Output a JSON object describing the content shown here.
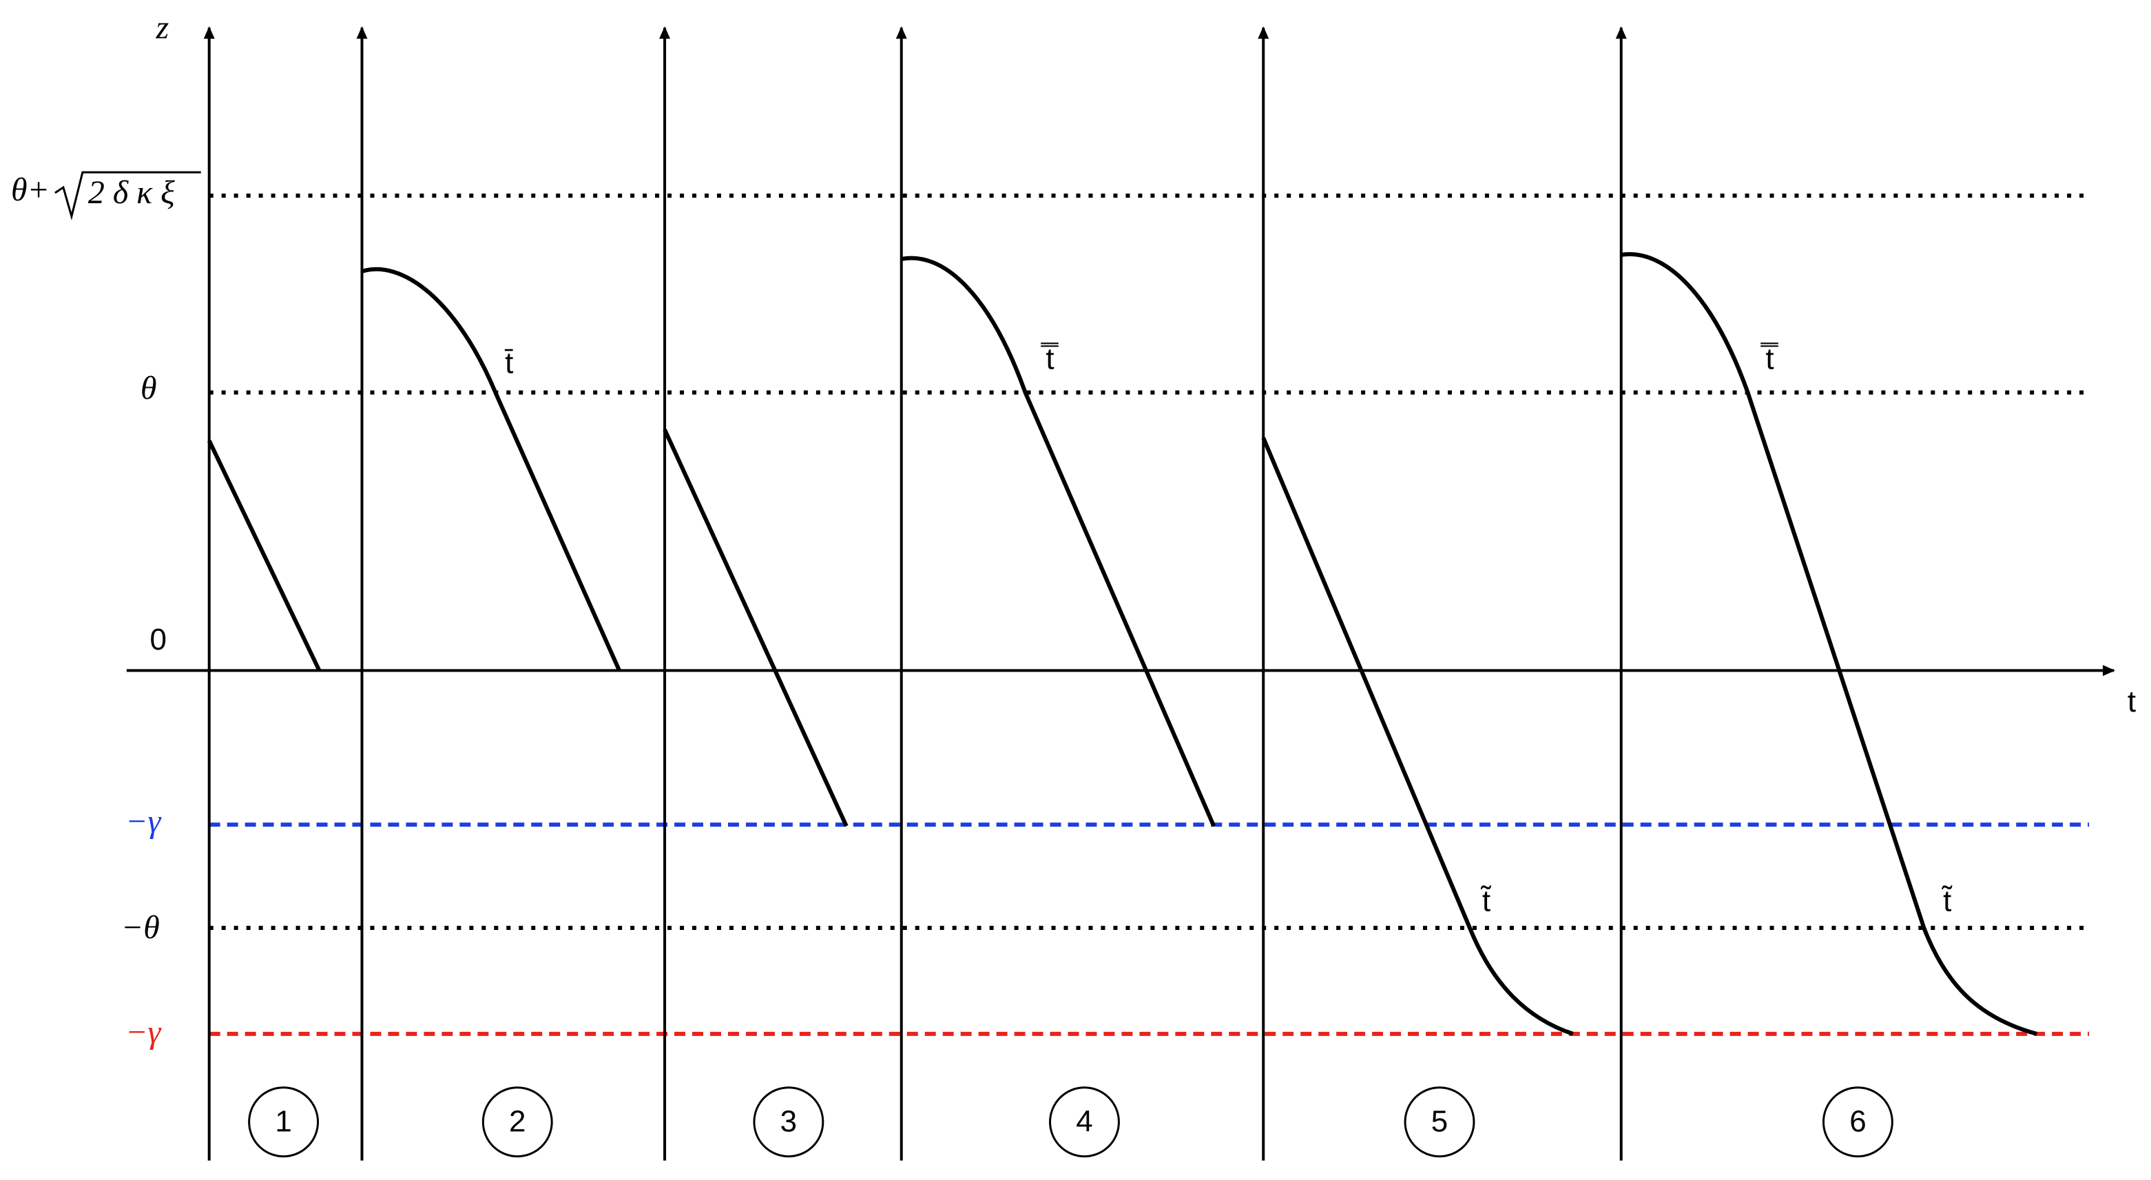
{
  "axes": {
    "vertical": "z",
    "horizontal": "t"
  },
  "levels": [
    {
      "prefix": "θ+",
      "radicand": "2 δ κ ξ"
    },
    {
      "label": "θ"
    },
    {
      "label": "0"
    },
    {
      "label": "−γ"
    },
    {
      "label": "−θ"
    },
    {
      "label": "−γ"
    }
  ],
  "regions": [
    "1",
    "2",
    "3",
    "4",
    "5",
    "6"
  ],
  "annotations": [
    "t̄",
    "t̿",
    "t̿",
    "t̃",
    "t̃"
  ]
}
